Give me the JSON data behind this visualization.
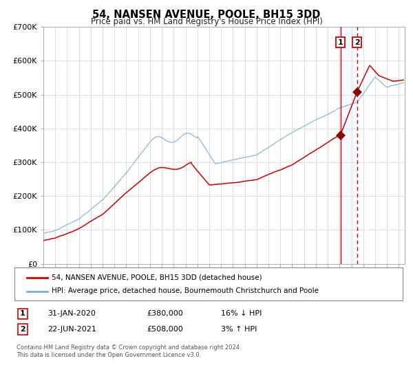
{
  "title": "54, NANSEN AVENUE, POOLE, BH15 3DD",
  "subtitle": "Price paid vs. HM Land Registry's House Price Index (HPI)",
  "legend_entry1": "54, NANSEN AVENUE, POOLE, BH15 3DD (detached house)",
  "legend_entry2": "HPI: Average price, detached house, Bournemouth Christchurch and Poole",
  "annotation1_date": "31-JAN-2020",
  "annotation1_price": "£380,000",
  "annotation1_hpi": "16% ↓ HPI",
  "annotation2_date": "22-JUN-2021",
  "annotation2_price": "£508,000",
  "annotation2_hpi": "3% ↑ HPI",
  "footnote": "Contains HM Land Registry data © Crown copyright and database right 2024.\nThis data is licensed under the Open Government Licence v3.0.",
  "red_line_color": "#cc0000",
  "blue_line_color": "#7bafd4",
  "marker_color": "#8b0000",
  "vline1_color": "#cc0000",
  "vline2_color": "#cc0000",
  "shade_color": "#ddeeff",
  "ylim": [
    0,
    700000
  ],
  "yticks": [
    0,
    100000,
    200000,
    300000,
    400000,
    500000,
    600000,
    700000
  ],
  "ytick_labels": [
    "£0",
    "£100K",
    "£200K",
    "£300K",
    "£400K",
    "£500K",
    "£600K",
    "£700K"
  ],
  "xlim_start": 1995.0,
  "xlim_end": 2025.5,
  "marker1_x": 2020.08,
  "marker1_y": 380000,
  "marker2_x": 2021.47,
  "marker2_y": 508000,
  "vline1_x": 2020.08,
  "vline2_x": 2021.47,
  "shade_x_start": 2020.08,
  "shade_x_end": 2021.47
}
